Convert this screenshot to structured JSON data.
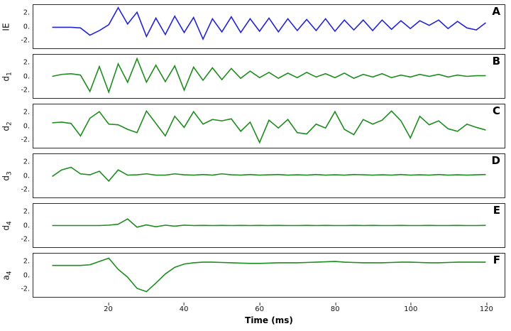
{
  "chart_data": {
    "type": "line",
    "xlabel": "Time (ms)",
    "xlim": [
      0,
      125
    ],
    "grid": false,
    "legend": "none",
    "xticks": [
      "20",
      "40",
      "60",
      "80",
      "100",
      "120"
    ],
    "yticks": [
      "2.",
      "0.",
      "-2."
    ],
    "x": [
      5,
      7.5,
      10,
      12.5,
      15,
      17.5,
      20,
      22.5,
      25,
      27.5,
      30,
      32.5,
      35,
      37.5,
      40,
      42.5,
      45,
      47.5,
      50,
      52.5,
      55,
      57.5,
      60,
      62.5,
      65,
      67.5,
      70,
      72.5,
      75,
      77.5,
      80,
      82.5,
      85,
      87.5,
      90,
      92.5,
      95,
      97.5,
      100,
      102.5,
      105,
      107.5,
      110,
      112.5,
      115,
      117.5,
      120
    ],
    "panels": [
      {
        "letter": "A",
        "ylabel_base": "IE",
        "ylabel_sub": "",
        "color": "#2323d6",
        "ylim": [
          -3.3,
          3.3
        ],
        "y": [
          -0.1,
          -0.1,
          -0.1,
          -0.2,
          -1.3,
          -0.6,
          0.3,
          2.9,
          0.4,
          2.2,
          -1.5,
          1.3,
          -1.2,
          1.6,
          -0.9,
          1.4,
          -1.9,
          1.2,
          -0.8,
          1.5,
          -0.9,
          1.2,
          -0.7,
          1.3,
          -0.8,
          1.2,
          -0.6,
          1.1,
          -0.6,
          1.2,
          -0.7,
          1.0,
          -0.5,
          1.0,
          -0.6,
          1.0,
          -0.4,
          0.9,
          -0.3,
          0.9,
          0.2,
          1.0,
          -0.3,
          0.8,
          -0.2,
          -0.5,
          0.6
        ]
      },
      {
        "letter": "B",
        "ylabel_base": "d",
        "ylabel_sub": "1",
        "color": "#1e8c1e",
        "ylim": [
          -3.3,
          3.3
        ],
        "y": [
          0.0,
          0.3,
          0.4,
          0.2,
          -2.3,
          1.5,
          -2.4,
          1.9,
          -0.9,
          2.7,
          -0.9,
          1.7,
          -0.8,
          1.6,
          -2.1,
          1.4,
          -0.6,
          1.3,
          -0.5,
          1.2,
          -0.3,
          0.8,
          -0.2,
          0.6,
          -0.3,
          0.5,
          -0.2,
          0.6,
          -0.1,
          0.4,
          -0.2,
          0.5,
          -0.3,
          0.3,
          -0.1,
          0.4,
          -0.2,
          0.2,
          -0.1,
          0.3,
          0.0,
          0.3,
          -0.1,
          0.2,
          0.0,
          0.1,
          0.1
        ]
      },
      {
        "letter": "C",
        "ylabel_base": "d",
        "ylabel_sub": "2",
        "color": "#1e8c1e",
        "ylim": [
          -3.3,
          3.3
        ],
        "y": [
          0.5,
          0.6,
          0.4,
          -1.5,
          1.2,
          2.2,
          0.3,
          0.2,
          -0.5,
          -1.0,
          2.3,
          0.4,
          -1.5,
          1.5,
          -0.2,
          2.2,
          0.3,
          1.0,
          0.8,
          1.1,
          -0.8,
          0.6,
          -2.5,
          0.9,
          -0.3,
          1.0,
          -1.0,
          -1.2,
          0.3,
          -0.3,
          2.2,
          -0.5,
          -1.3,
          1.0,
          0.3,
          0.9,
          2.3,
          0.8,
          -1.8,
          1.5,
          0.2,
          0.8,
          -0.4,
          -0.8,
          0.3,
          -0.2,
          -0.6
        ]
      },
      {
        "letter": "D",
        "ylabel_base": "d",
        "ylabel_sub": "3",
        "color": "#1e8c1e",
        "ylim": [
          -3.3,
          3.3
        ],
        "y": [
          -0.1,
          0.9,
          1.3,
          0.3,
          0.15,
          0.7,
          -0.8,
          0.9,
          0.1,
          0.15,
          0.3,
          0.1,
          0.1,
          0.3,
          0.15,
          0.1,
          0.2,
          0.1,
          0.3,
          0.15,
          0.1,
          0.2,
          0.1,
          0.15,
          0.2,
          0.1,
          0.15,
          0.1,
          0.2,
          0.1,
          0.15,
          0.1,
          0.2,
          0.15,
          0.1,
          0.15,
          0.1,
          0.2,
          0.1,
          0.15,
          0.1,
          0.2,
          0.1,
          0.15,
          0.1,
          0.15,
          0.2
        ]
      },
      {
        "letter": "E",
        "ylabel_base": "d",
        "ylabel_sub": "4",
        "color": "#1e8c1e",
        "ylim": [
          -3.3,
          3.3
        ],
        "y": [
          0,
          0,
          0,
          0,
          0,
          0,
          0.05,
          0.2,
          1.0,
          -0.25,
          0.1,
          -0.2,
          0.05,
          -0.1,
          0.05,
          0,
          0.02,
          0,
          0.02,
          0,
          0.02,
          0,
          0.02,
          0,
          0.02,
          0,
          0,
          0.02,
          0,
          0.02,
          0,
          0,
          0.02,
          0,
          0.02,
          0,
          0,
          0.02,
          0,
          0,
          0.02,
          0,
          0,
          0.02,
          0,
          0,
          0.02
        ]
      },
      {
        "letter": "F",
        "ylabel_base": "a",
        "ylabel_sub": "4",
        "color": "#1e8c1e",
        "ylim": [
          -3.3,
          3.3
        ],
        "y": [
          1.5,
          1.5,
          1.5,
          1.5,
          1.6,
          2.1,
          2.6,
          0.9,
          -0.3,
          -2.0,
          -2.5,
          -1.2,
          0.2,
          1.2,
          1.7,
          1.9,
          2.0,
          2.0,
          1.95,
          1.9,
          1.85,
          1.8,
          1.8,
          1.85,
          1.9,
          1.9,
          1.9,
          1.95,
          2.0,
          2.05,
          2.1,
          2.0,
          1.95,
          1.9,
          1.9,
          1.9,
          1.95,
          2.0,
          2.0,
          1.95,
          1.9,
          1.9,
          1.95,
          2.0,
          2.0,
          2.0,
          2.0
        ]
      }
    ]
  }
}
